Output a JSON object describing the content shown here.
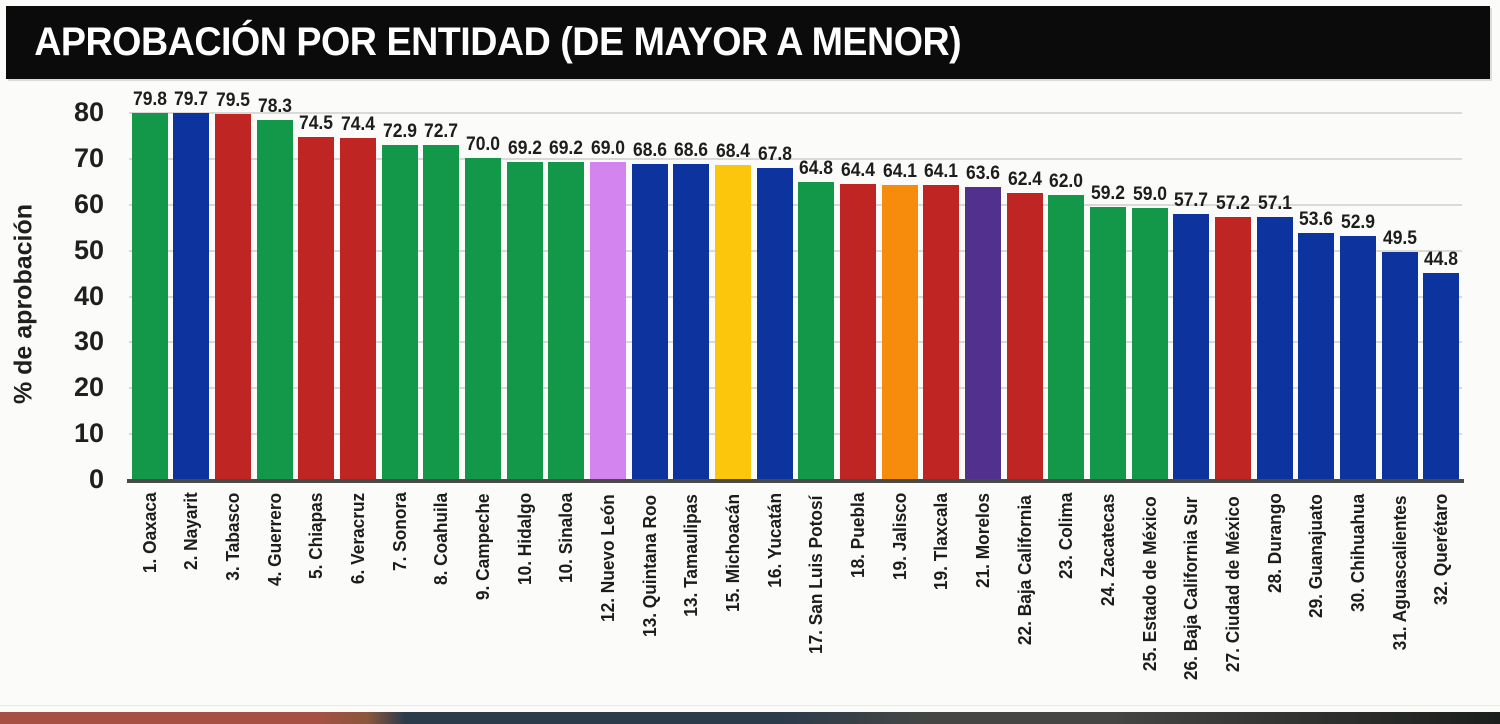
{
  "title": "APROBACIÓN POR ENTIDAD (DE MAYOR A MENOR)",
  "chart_data": {
    "type": "bar",
    "title": "APROBACIÓN POR ENTIDAD (DE MAYOR A MENOR)",
    "xlabel": "",
    "ylabel": "% de aprobación",
    "ylim": [
      0,
      80
    ],
    "yticks": [
      0,
      10,
      20,
      30,
      40,
      50,
      60,
      70,
      80
    ],
    "grid": true,
    "legend": "none",
    "categories": [
      "1. Oaxaca",
      "2. Nayarit",
      "3. Tabasco",
      "4. Guerrero",
      "5. Chiapas",
      "6. Veracruz",
      "7. Sonora",
      "8. Coahuila",
      "9. Campeche",
      "10. Hidalgo",
      "10. Sinaloa",
      "12. Nuevo León",
      "13. Quintana Roo",
      "13. Tamaulipas",
      "15. Michoacán",
      "16. Yucatán",
      "17. San Luis Potosí",
      "18. Puebla",
      "19. Jalisco",
      "19. Tlaxcala",
      "21. Morelos",
      "22. Baja California",
      "23. Colima",
      "24. Zacatecas",
      "25. Estado de México",
      "26. Baja California Sur",
      "27. Ciudad de México",
      "28. Durango",
      "29. Guanajuato",
      "30. Chihuahua",
      "31. Aguascalientes",
      "32. Querétaro"
    ],
    "values": [
      79.8,
      79.7,
      79.5,
      78.3,
      74.5,
      74.4,
      72.9,
      72.7,
      70.0,
      69.2,
      69.2,
      69.0,
      68.6,
      68.6,
      68.4,
      67.8,
      64.8,
      64.4,
      64.1,
      64.1,
      63.6,
      62.4,
      62.0,
      59.2,
      59.0,
      57.7,
      57.2,
      57.1,
      53.6,
      52.9,
      49.5,
      44.8
    ],
    "value_labels": [
      "79.8",
      "79.7",
      "79.5",
      "78.3",
      "74.5",
      "74.4",
      "72.9",
      "72.7",
      "70.0",
      "69.2",
      "69.2",
      "69.0",
      "68.6",
      "68.6",
      "68.4",
      "67.8",
      "64.8",
      "64.4",
      "64.1",
      "64.1",
      "63.6",
      "62.4",
      "62.0",
      "59.2",
      "59.0",
      "57.7",
      "57.2",
      "57.1",
      "53.6",
      "52.9",
      "49.5",
      "44.8"
    ],
    "bar_color_keys": [
      "green",
      "blue",
      "red",
      "green",
      "red",
      "red",
      "green",
      "green",
      "green",
      "green",
      "green",
      "violet",
      "blue",
      "blue",
      "yellow",
      "blue",
      "green",
      "red",
      "orange",
      "red",
      "purple",
      "red",
      "green",
      "green",
      "green",
      "blue",
      "red",
      "blue",
      "blue",
      "blue",
      "blue",
      "blue"
    ]
  },
  "colors": {
    "green": "#13984a",
    "blue": "#0d339e",
    "red": "#bf2623",
    "violet": "#d484ee",
    "yellow": "#fcc60d",
    "orange": "#f68b0c",
    "purple": "#52308d",
    "title_bg": "#0b0b0b",
    "title_text": "#ffffff",
    "grid": "#d9d9d9",
    "axis": "#4a4a4a",
    "tick_text": "#1f1f1f",
    "label_text": "#1d1d1d",
    "background": "#fbfbfa"
  },
  "footer_strip": {
    "colors": [
      "#a55042",
      "#8a573d",
      "#2c3b4a",
      "#454644",
      "#1c1e1d"
    ]
  }
}
